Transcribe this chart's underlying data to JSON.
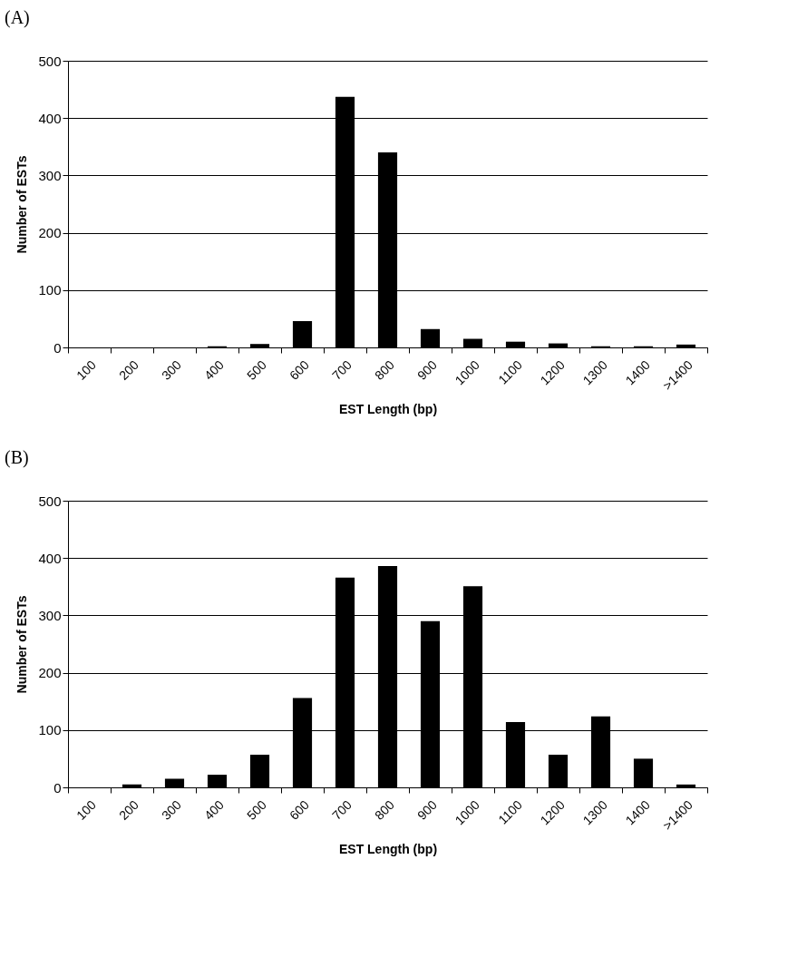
{
  "chart_data": [
    {
      "type": "bar",
      "title": "(A)",
      "xlabel": "EST Length (bp)",
      "ylabel": "Number of ESTs",
      "categories": [
        "100",
        "200",
        "300",
        "400",
        "500",
        "600",
        "700",
        "800",
        "900",
        "1000",
        "1100",
        "1200",
        "1300",
        "1400",
        ">1400"
      ],
      "color": "#000000",
      "values": [
        0,
        0,
        0,
        2,
        6,
        46,
        437,
        340,
        32,
        15,
        10,
        7,
        2,
        2,
        5
      ],
      "ylim": [
        0,
        500
      ],
      "yticks": [
        0,
        100,
        200,
        300,
        400,
        500
      ],
      "grid": "y"
    },
    {
      "type": "bar",
      "title": "(B)",
      "xlabel": "EST Length (bp)",
      "ylabel": "Number of ESTs",
      "categories": [
        "100",
        "200",
        "300",
        "400",
        "500",
        "600",
        "700",
        "800",
        "900",
        "1000",
        "1100",
        "1200",
        "1300",
        "1400",
        ">1400"
      ],
      "color": "#000000",
      "values": [
        0,
        5,
        15,
        22,
        57,
        156,
        366,
        386,
        290,
        351,
        114,
        57,
        124,
        50,
        5
      ],
      "ylim": [
        0,
        500
      ],
      "yticks": [
        0,
        100,
        200,
        300,
        400,
        500
      ],
      "grid": "y"
    }
  ]
}
